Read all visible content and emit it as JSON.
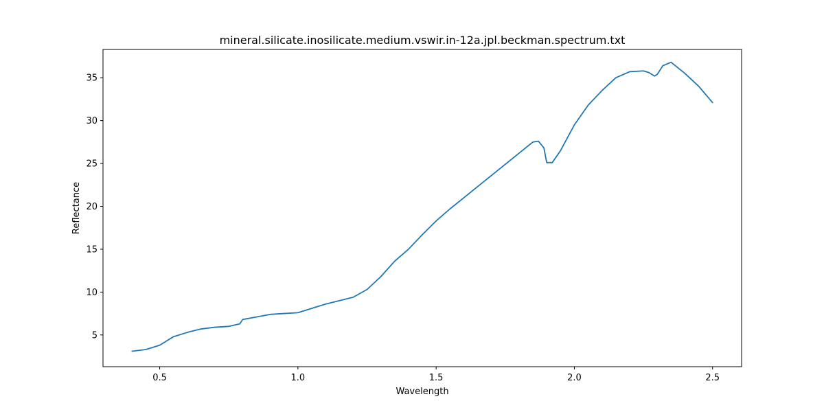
{
  "chart_data": {
    "type": "line",
    "title": "mineral.silicate.inosilicate.medium.vswir.in-12a.jpl.beckman.spectrum.txt",
    "xlabel": "Wavelength",
    "ylabel": "Reflectance",
    "xlim": [
      0.295,
      2.605
    ],
    "ylim": [
      1.3,
      38.3
    ],
    "xticks": [
      0.5,
      1.0,
      1.5,
      2.0,
      2.5
    ],
    "xtick_labels": [
      "0.5",
      "1.0",
      "1.5",
      "2.0",
      "2.5"
    ],
    "yticks": [
      5,
      10,
      15,
      20,
      25,
      30,
      35
    ],
    "ytick_labels": [
      "5",
      "10",
      "15",
      "20",
      "25",
      "30",
      "35"
    ],
    "grid": false,
    "legend": "none",
    "series": [
      {
        "color": "#1f77b4",
        "x": [
          0.4,
          0.45,
          0.5,
          0.55,
          0.6,
          0.65,
          0.7,
          0.75,
          0.79,
          0.8,
          0.85,
          0.9,
          0.95,
          1.0,
          1.05,
          1.1,
          1.15,
          1.2,
          1.25,
          1.3,
          1.35,
          1.4,
          1.45,
          1.5,
          1.55,
          1.6,
          1.65,
          1.7,
          1.75,
          1.8,
          1.85,
          1.87,
          1.89,
          1.9,
          1.92,
          1.95,
          2.0,
          2.05,
          2.1,
          2.15,
          2.2,
          2.25,
          2.27,
          2.29,
          2.3,
          2.32,
          2.35,
          2.4,
          2.45,
          2.5
        ],
        "y": [
          3.1,
          3.3,
          3.8,
          4.8,
          5.3,
          5.7,
          5.9,
          6.0,
          6.3,
          6.8,
          7.1,
          7.4,
          7.5,
          7.6,
          8.1,
          8.6,
          9.0,
          9.4,
          10.3,
          11.8,
          13.6,
          15.0,
          16.7,
          18.3,
          19.7,
          21.0,
          22.3,
          23.6,
          24.9,
          26.2,
          27.5,
          27.6,
          26.8,
          25.1,
          25.1,
          26.5,
          29.5,
          31.8,
          33.5,
          35.0,
          35.7,
          35.8,
          35.6,
          35.2,
          35.4,
          36.4,
          36.8,
          35.5,
          34.0,
          32.1
        ]
      }
    ]
  }
}
